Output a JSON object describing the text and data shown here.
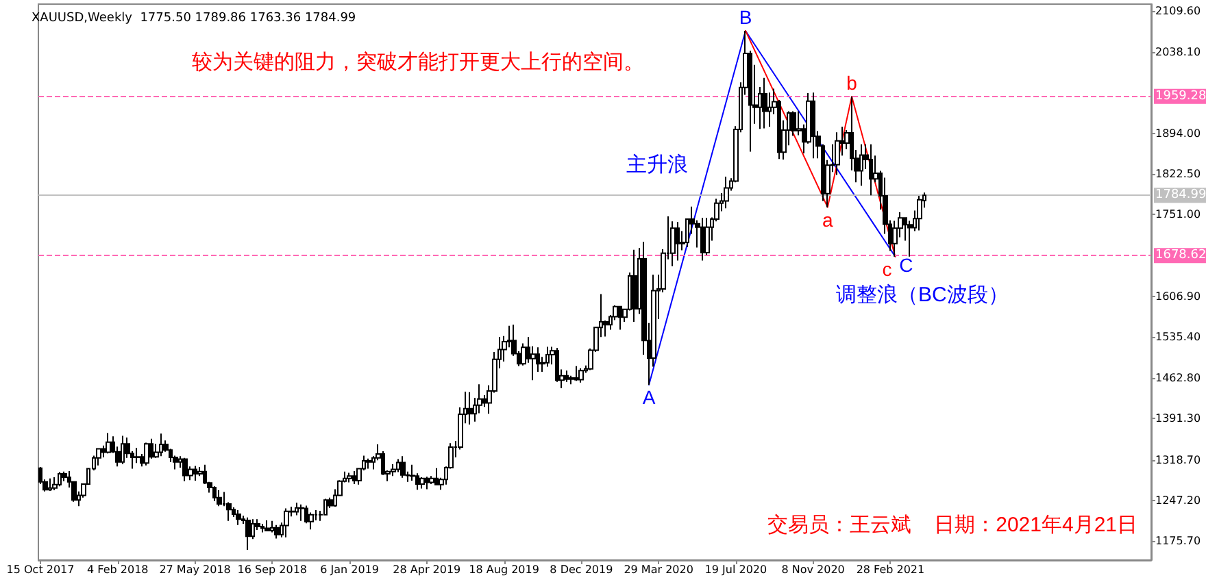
{
  "chart_data": {
    "type": "candlestick",
    "title": "XAUUSD,Weekly  1775.50 1789.86 1763.36 1784.99",
    "x": [
      "2017-10-15",
      "2017-10-22",
      "2017-10-29",
      "2017-11-05",
      "2017-11-12",
      "2017-11-19",
      "2017-11-26",
      "2017-12-03",
      "2017-12-10",
      "2017-12-17",
      "2017-12-24",
      "2017-12-31",
      "2018-01-07",
      "2018-01-14",
      "2018-01-21",
      "2018-01-28",
      "2018-02-04",
      "2018-02-11",
      "2018-02-18",
      "2018-02-25",
      "2018-03-04",
      "2018-03-11",
      "2018-03-18",
      "2018-03-25",
      "2018-04-01",
      "2018-04-08",
      "2018-04-15",
      "2018-04-22",
      "2018-04-29",
      "2018-05-06",
      "2018-05-13",
      "2018-05-20",
      "2018-05-27",
      "2018-06-03",
      "2018-06-10",
      "2018-06-17",
      "2018-06-24",
      "2018-07-01",
      "2018-07-08",
      "2018-07-15",
      "2018-07-22",
      "2018-07-29",
      "2018-08-05",
      "2018-08-12",
      "2018-08-19",
      "2018-08-26",
      "2018-09-02",
      "2018-09-09",
      "2018-09-16",
      "2018-09-23",
      "2018-09-30",
      "2018-10-07",
      "2018-10-14",
      "2018-10-21",
      "2018-10-28",
      "2018-11-04",
      "2018-11-11",
      "2018-11-18",
      "2018-11-25",
      "2018-12-02",
      "2018-12-09",
      "2018-12-16",
      "2018-12-23",
      "2018-12-30",
      "2019-01-06",
      "2019-01-13",
      "2019-01-20",
      "2019-01-27",
      "2019-02-03",
      "2019-02-10",
      "2019-02-17",
      "2019-02-24",
      "2019-03-03",
      "2019-03-10",
      "2019-03-17",
      "2019-03-24",
      "2019-03-31",
      "2019-04-07",
      "2019-04-14",
      "2019-04-21",
      "2019-04-28",
      "2019-05-05",
      "2019-05-12",
      "2019-05-19",
      "2019-05-26",
      "2019-06-02",
      "2019-06-09",
      "2019-06-16",
      "2019-06-23",
      "2019-06-30",
      "2019-07-07",
      "2019-07-14",
      "2019-07-21",
      "2019-07-28",
      "2019-08-04",
      "2019-08-11",
      "2019-08-18",
      "2019-08-25",
      "2019-09-01",
      "2019-09-08",
      "2019-09-15",
      "2019-09-22",
      "2019-09-29",
      "2019-10-06",
      "2019-10-13",
      "2019-10-20",
      "2019-10-27",
      "2019-11-03",
      "2019-11-10",
      "2019-11-17",
      "2019-11-24",
      "2019-12-01",
      "2019-12-08",
      "2019-12-15",
      "2019-12-22",
      "2019-12-29",
      "2020-01-05",
      "2020-01-12",
      "2020-01-19",
      "2020-01-26",
      "2020-02-02",
      "2020-02-09",
      "2020-02-16",
      "2020-02-23",
      "2020-03-01",
      "2020-03-08",
      "2020-03-15",
      "2020-03-22",
      "2020-03-29",
      "2020-04-05",
      "2020-04-12",
      "2020-04-19",
      "2020-04-26",
      "2020-05-03",
      "2020-05-10",
      "2020-05-17",
      "2020-05-24",
      "2020-05-31",
      "2020-06-07",
      "2020-06-14",
      "2020-06-21",
      "2020-06-28",
      "2020-07-05",
      "2020-07-12",
      "2020-07-19",
      "2020-07-26",
      "2020-08-02",
      "2020-08-09",
      "2020-08-16",
      "2020-08-23",
      "2020-08-30",
      "2020-09-06",
      "2020-09-13",
      "2020-09-20",
      "2020-09-27",
      "2020-10-04",
      "2020-10-11",
      "2020-10-18",
      "2020-10-25",
      "2020-11-01",
      "2020-11-08",
      "2020-11-15",
      "2020-11-22",
      "2020-11-29",
      "2020-12-06",
      "2020-12-13",
      "2020-12-20",
      "2020-12-27",
      "2021-01-03",
      "2021-01-10",
      "2021-01-17",
      "2021-01-24",
      "2021-01-31",
      "2021-02-07",
      "2021-02-14",
      "2021-02-21",
      "2021-02-28",
      "2021-03-07",
      "2021-03-14",
      "2021-03-21",
      "2021-03-28",
      "2021-04-04",
      "2021-04-11",
      "2021-04-18"
    ],
    "ohlc": [
      [
        1304,
        1306,
        1276,
        1280
      ],
      [
        1280,
        1284,
        1263,
        1266
      ],
      [
        1266,
        1286,
        1264,
        1269
      ],
      [
        1269,
        1288,
        1265,
        1275
      ],
      [
        1275,
        1297,
        1272,
        1294
      ],
      [
        1294,
        1298,
        1281,
        1288
      ],
      [
        1288,
        1299,
        1270,
        1280
      ],
      [
        1280,
        1280,
        1245,
        1248
      ],
      [
        1248,
        1263,
        1237,
        1256
      ],
      [
        1256,
        1277,
        1252,
        1276
      ],
      [
        1276,
        1303,
        1275,
        1303
      ],
      [
        1303,
        1326,
        1300,
        1322
      ],
      [
        1322,
        1339,
        1309,
        1338
      ],
      [
        1338,
        1344,
        1323,
        1332
      ],
      [
        1332,
        1366,
        1330,
        1350
      ],
      [
        1350,
        1360,
        1331,
        1333
      ],
      [
        1333,
        1342,
        1307,
        1315
      ],
      [
        1315,
        1361,
        1311,
        1347
      ],
      [
        1347,
        1358,
        1322,
        1330
      ],
      [
        1330,
        1334,
        1303,
        1323
      ],
      [
        1323,
        1340,
        1313,
        1324
      ],
      [
        1324,
        1329,
        1307,
        1313
      ],
      [
        1313,
        1349,
        1309,
        1347
      ],
      [
        1347,
        1356,
        1321,
        1324
      ],
      [
        1324,
        1347,
        1322,
        1332
      ],
      [
        1332,
        1365,
        1325,
        1346
      ],
      [
        1346,
        1353,
        1333,
        1336
      ],
      [
        1336,
        1338,
        1315,
        1323
      ],
      [
        1323,
        1326,
        1302,
        1315
      ],
      [
        1315,
        1325,
        1305,
        1320
      ],
      [
        1320,
        1322,
        1281,
        1291
      ],
      [
        1291,
        1307,
        1283,
        1302
      ],
      [
        1302,
        1308,
        1282,
        1294
      ],
      [
        1294,
        1306,
        1290,
        1298
      ],
      [
        1298,
        1310,
        1276,
        1278
      ],
      [
        1278,
        1280,
        1261,
        1270
      ],
      [
        1270,
        1272,
        1246,
        1252
      ],
      [
        1252,
        1265,
        1237,
        1241
      ],
      [
        1241,
        1262,
        1237,
        1241
      ],
      [
        1241,
        1244,
        1211,
        1231
      ],
      [
        1231,
        1235,
        1218,
        1223
      ],
      [
        1223,
        1230,
        1204,
        1214
      ],
      [
        1214,
        1220,
        1206,
        1212
      ],
      [
        1212,
        1217,
        1160,
        1184
      ],
      [
        1184,
        1214,
        1179,
        1206
      ],
      [
        1206,
        1214,
        1195,
        1201
      ],
      [
        1201,
        1206,
        1191,
        1198
      ],
      [
        1198,
        1212,
        1193,
        1194
      ],
      [
        1194,
        1211,
        1191,
        1199
      ],
      [
        1199,
        1204,
        1180,
        1187
      ],
      [
        1187,
        1208,
        1182,
        1203
      ],
      [
        1203,
        1233,
        1182,
        1228
      ],
      [
        1228,
        1236,
        1219,
        1227
      ],
      [
        1227,
        1243,
        1221,
        1234
      ],
      [
        1234,
        1240,
        1211,
        1233
      ],
      [
        1233,
        1238,
        1207,
        1210
      ],
      [
        1210,
        1226,
        1196,
        1222
      ],
      [
        1222,
        1230,
        1212,
        1222
      ],
      [
        1222,
        1229,
        1211,
        1222
      ],
      [
        1222,
        1250,
        1221,
        1248
      ],
      [
        1248,
        1252,
        1234,
        1238
      ],
      [
        1238,
        1267,
        1236,
        1256
      ],
      [
        1256,
        1283,
        1256,
        1281
      ],
      [
        1281,
        1298,
        1279,
        1286
      ],
      [
        1286,
        1296,
        1279,
        1290
      ],
      [
        1290,
        1299,
        1276,
        1282
      ],
      [
        1282,
        1304,
        1275,
        1303
      ],
      [
        1303,
        1326,
        1300,
        1317
      ],
      [
        1317,
        1321,
        1303,
        1315
      ],
      [
        1315,
        1325,
        1302,
        1322
      ],
      [
        1322,
        1346,
        1318,
        1329
      ],
      [
        1329,
        1334,
        1292,
        1294
      ],
      [
        1294,
        1300,
        1281,
        1298
      ],
      [
        1298,
        1311,
        1290,
        1302
      ],
      [
        1302,
        1320,
        1297,
        1314
      ],
      [
        1314,
        1325,
        1287,
        1292
      ],
      [
        1292,
        1298,
        1280,
        1291
      ],
      [
        1291,
        1310,
        1282,
        1290
      ],
      [
        1290,
        1295,
        1266,
        1276
      ],
      [
        1276,
        1288,
        1268,
        1286
      ],
      [
        1286,
        1289,
        1267,
        1279
      ],
      [
        1279,
        1290,
        1276,
        1286
      ],
      [
        1286,
        1304,
        1274,
        1275
      ],
      [
        1275,
        1287,
        1266,
        1284
      ],
      [
        1284,
        1307,
        1275,
        1305
      ],
      [
        1305,
        1348,
        1303,
        1341
      ],
      [
        1341,
        1352,
        1323,
        1341
      ],
      [
        1341,
        1411,
        1337,
        1399
      ],
      [
        1399,
        1439,
        1383,
        1409
      ],
      [
        1409,
        1438,
        1381,
        1400
      ],
      [
        1400,
        1428,
        1386,
        1415
      ],
      [
        1415,
        1452,
        1401,
        1426
      ],
      [
        1426,
        1433,
        1412,
        1419
      ],
      [
        1419,
        1450,
        1400,
        1440
      ],
      [
        1440,
        1509,
        1437,
        1496
      ],
      [
        1496,
        1535,
        1480,
        1513
      ],
      [
        1513,
        1537,
        1492,
        1527
      ],
      [
        1527,
        1555,
        1517,
        1529
      ],
      [
        1529,
        1557,
        1502,
        1506
      ],
      [
        1506,
        1510,
        1484,
        1488
      ],
      [
        1488,
        1524,
        1485,
        1517
      ],
      [
        1517,
        1535,
        1490,
        1497
      ],
      [
        1497,
        1519,
        1459,
        1505
      ],
      [
        1505,
        1517,
        1474,
        1488
      ],
      [
        1488,
        1500,
        1474,
        1490
      ],
      [
        1490,
        1518,
        1483,
        1504
      ],
      [
        1504,
        1518,
        1487,
        1511
      ],
      [
        1511,
        1516,
        1456,
        1459
      ],
      [
        1459,
        1478,
        1445,
        1467
      ],
      [
        1467,
        1476,
        1456,
        1461
      ],
      [
        1461,
        1467,
        1452,
        1463
      ],
      [
        1463,
        1484,
        1458,
        1460
      ],
      [
        1460,
        1480,
        1455,
        1476
      ],
      [
        1476,
        1485,
        1472,
        1479
      ],
      [
        1479,
        1515,
        1477,
        1512
      ],
      [
        1512,
        1553,
        1509,
        1552
      ],
      [
        1552,
        1611,
        1535,
        1562
      ],
      [
        1562,
        1564,
        1536,
        1557
      ],
      [
        1557,
        1574,
        1548,
        1571
      ],
      [
        1571,
        1591,
        1565,
        1589
      ],
      [
        1589,
        1590,
        1548,
        1570
      ],
      [
        1570,
        1585,
        1562,
        1584
      ],
      [
        1584,
        1649,
        1582,
        1643
      ],
      [
        1643,
        1689,
        1562,
        1585
      ],
      [
        1585,
        1692,
        1576,
        1673
      ],
      [
        1673,
        1703,
        1504,
        1529
      ],
      [
        1529,
        1560,
        1451,
        1498
      ],
      [
        1498,
        1645,
        1483,
        1617
      ],
      [
        1617,
        1645,
        1567,
        1620
      ],
      [
        1620,
        1690,
        1614,
        1683
      ],
      [
        1683,
        1748,
        1672,
        1683
      ],
      [
        1683,
        1739,
        1660,
        1727
      ],
      [
        1727,
        1738,
        1670,
        1700
      ],
      [
        1700,
        1722,
        1688,
        1702
      ],
      [
        1702,
        1743,
        1694,
        1743
      ],
      [
        1743,
        1765,
        1717,
        1735
      ],
      [
        1735,
        1741,
        1693,
        1729
      ],
      [
        1729,
        1745,
        1670,
        1684
      ],
      [
        1684,
        1745,
        1680,
        1729
      ],
      [
        1729,
        1746,
        1705,
        1743
      ],
      [
        1743,
        1779,
        1739,
        1771
      ],
      [
        1771,
        1789,
        1757,
        1775
      ],
      [
        1775,
        1818,
        1762,
        1798
      ],
      [
        1798,
        1815,
        1793,
        1810
      ],
      [
        1810,
        1907,
        1808,
        1901
      ],
      [
        1901,
        1984,
        1896,
        1975
      ],
      [
        1975,
        2075,
        1962,
        2035
      ],
      [
        2035,
        2040,
        1862,
        1944
      ],
      [
        1944,
        2015,
        1911,
        1940
      ],
      [
        1940,
        1976,
        1902,
        1964
      ],
      [
        1964,
        1992,
        1903,
        1933
      ],
      [
        1933,
        1966,
        1906,
        1940
      ],
      [
        1940,
        1973,
        1928,
        1950
      ],
      [
        1950,
        1953,
        1849,
        1861
      ],
      [
        1861,
        1917,
        1848,
        1900
      ],
      [
        1900,
        1933,
        1873,
        1930
      ],
      [
        1930,
        1933,
        1890,
        1899
      ],
      [
        1899,
        1933,
        1891,
        1902
      ],
      [
        1902,
        1910,
        1859,
        1879
      ],
      [
        1879,
        1965,
        1876,
        1951
      ],
      [
        1951,
        1966,
        1850,
        1889
      ],
      [
        1889,
        1898,
        1850,
        1872
      ],
      [
        1872,
        1875,
        1775,
        1788
      ],
      [
        1788,
        1847,
        1764,
        1838
      ],
      [
        1838,
        1875,
        1826,
        1839
      ],
      [
        1839,
        1896,
        1821,
        1881
      ],
      [
        1881,
        1906,
        1855,
        1877
      ],
      [
        1877,
        1900,
        1866,
        1895
      ],
      [
        1895,
        1959,
        1829,
        1850
      ],
      [
        1850,
        1865,
        1808,
        1828
      ],
      [
        1828,
        1875,
        1802,
        1856
      ],
      [
        1856,
        1875,
        1831,
        1848
      ],
      [
        1848,
        1875,
        1785,
        1814
      ],
      [
        1814,
        1855,
        1808,
        1824
      ],
      [
        1824,
        1828,
        1760,
        1784
      ],
      [
        1784,
        1816,
        1717,
        1734
      ],
      [
        1734,
        1741,
        1687,
        1700
      ],
      [
        1700,
        1740,
        1677,
        1727
      ],
      [
        1727,
        1755,
        1711,
        1745
      ],
      [
        1745,
        1745,
        1705,
        1733
      ],
      [
        1733,
        1740,
        1677,
        1728
      ],
      [
        1728,
        1758,
        1722,
        1744
      ],
      [
        1744,
        1784,
        1723,
        1777
      ],
      [
        1775.5,
        1789.86,
        1763.36,
        1784.99
      ]
    ],
    "series": [
      {
        "type": "line",
        "color": "#0000ff",
        "x": [
          "2020-03-15",
          "2020-08-02",
          "2021-03-07"
        ],
        "values": [
          1451,
          2075,
          1677
        ]
      },
      {
        "type": "line",
        "color": "#ff0000",
        "x": [
          "2020-08-02",
          "2020-11-29",
          "2021-01-03",
          "2021-03-07"
        ],
        "values": [
          2075,
          1764,
          1959,
          1677
        ]
      }
    ],
    "marker": "none",
    "line_style": "solid",
    "xlim": [
      "2017-10-12",
      "2022-03-13"
    ],
    "xticks": [
      {
        "value": "2017-10-15",
        "label": "15 Oct 2017"
      },
      {
        "value": "2018-02-04",
        "label": "4 Feb 2018"
      },
      {
        "value": "2018-05-27",
        "label": "27 May 2018"
      },
      {
        "value": "2018-09-16",
        "label": "16 Sep 2018"
      },
      {
        "value": "2019-01-06",
        "label": "6 Jan 2019"
      },
      {
        "value": "2019-04-28",
        "label": "28 Apr 2019"
      },
      {
        "value": "2019-08-18",
        "label": "18 Aug 2019"
      },
      {
        "value": "2019-12-08",
        "label": "8 Dec 2019"
      },
      {
        "value": "2020-03-29",
        "label": "29 Mar 2020"
      },
      {
        "value": "2020-07-19",
        "label": "19 Jul 2020"
      },
      {
        "value": "2020-11-08",
        "label": "8 Nov 2020"
      },
      {
        "value": "2021-02-28",
        "label": "28 Feb 2021"
      }
    ],
    "ylim": [
      1142,
      2122
    ],
    "yticks": [
      {
        "value": 2109.6,
        "label": "2109.60"
      },
      {
        "value": 2038.1,
        "label": "2038.10"
      },
      {
        "value": 1894.0,
        "label": "1894.00"
      },
      {
        "value": 1822.5,
        "label": "1822.50"
      },
      {
        "value": 1751.0,
        "label": "1751.00"
      },
      {
        "value": 1606.9,
        "label": "1606.90"
      },
      {
        "value": 1535.4,
        "label": "1535.40"
      },
      {
        "value": 1462.8,
        "label": "1462.80"
      },
      {
        "value": 1391.3,
        "label": "1391.30"
      },
      {
        "value": 1318.7,
        "label": "1318.70"
      },
      {
        "value": 1247.2,
        "label": "1247.20"
      },
      {
        "value": 1175.7,
        "label": "1175.70"
      }
    ],
    "ref_lines": [
      {
        "axis": "y",
        "value": 1959.28,
        "label": "1959.28",
        "color": "#ff69b4",
        "line_style": "dashed"
      },
      {
        "axis": "y",
        "value": 1678.62,
        "label": "1678.62",
        "color": "#ff69b4",
        "line_style": "dashed"
      },
      {
        "axis": "y",
        "value": 1784.99,
        "label": "1784.99",
        "color": "#c0c0c0",
        "line_style": "solid"
      }
    ],
    "annotations": [
      "较为关键的阻力，突破才能打开更大上行的空间。",
      "交易员：王云斌    日期：2021年4月21日",
      "主升浪",
      "调整浪（BC波段）",
      {
        "text": "A",
        "x": "2020-03-15",
        "y": 1451
      },
      {
        "text": "B",
        "x": "2020-08-02",
        "y": 2075
      },
      {
        "text": "C",
        "x": "2021-03-07",
        "y": 1677
      },
      {
        "text": "a",
        "x": "2020-11-29",
        "y": 1764
      },
      {
        "text": "b",
        "x": "2021-01-03",
        "y": 1959
      },
      {
        "text": "c",
        "x": "2021-03-07",
        "y": 1677
      }
    ],
    "grid": false
  }
}
